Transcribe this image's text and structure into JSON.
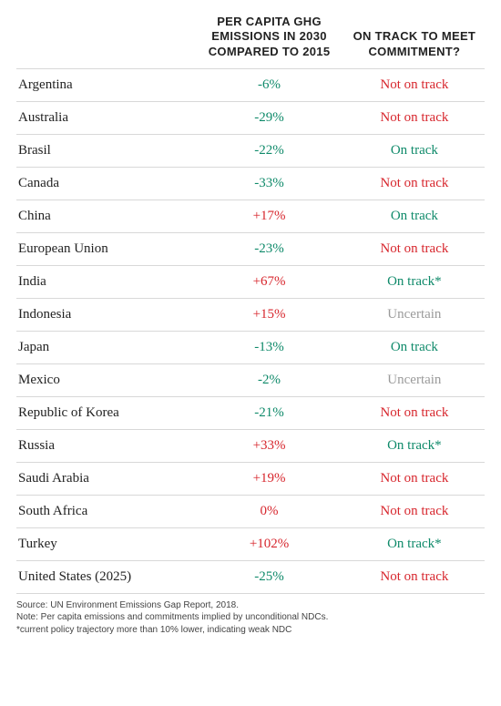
{
  "colors": {
    "negative_green": "#0f8a6a",
    "positive_red": "#d7262d",
    "uncertain_gray": "#9a9a9a",
    "text": "#222222",
    "border": "#d8d8d8"
  },
  "header": {
    "emissions": "PER CAPITA GHG EMISSIONS IN 2030 COMPARED TO 2015",
    "status": "ON TRACK TO MEET COMMITMENT?"
  },
  "rows": [
    {
      "country": "Argentina",
      "emissions": "-6%",
      "emissions_color": "#0f8a6a",
      "status": "Not on track",
      "status_color": "#d7262d"
    },
    {
      "country": "Australia",
      "emissions": "-29%",
      "emissions_color": "#0f8a6a",
      "status": "Not on track",
      "status_color": "#d7262d"
    },
    {
      "country": "Brasil",
      "emissions": "-22%",
      "emissions_color": "#0f8a6a",
      "status": "On track",
      "status_color": "#0f8a6a"
    },
    {
      "country": "Canada",
      "emissions": "-33%",
      "emissions_color": "#0f8a6a",
      "status": "Not on track",
      "status_color": "#d7262d"
    },
    {
      "country": "China",
      "emissions": "+17%",
      "emissions_color": "#d7262d",
      "status": "On track",
      "status_color": "#0f8a6a"
    },
    {
      "country": "European Union",
      "emissions": "-23%",
      "emissions_color": "#0f8a6a",
      "status": "Not on track",
      "status_color": "#d7262d"
    },
    {
      "country": "India",
      "emissions": "+67%",
      "emissions_color": "#d7262d",
      "status": "On track*",
      "status_color": "#0f8a6a"
    },
    {
      "country": "Indonesia",
      "emissions": "+15%",
      "emissions_color": "#d7262d",
      "status": "Uncertain",
      "status_color": "#9a9a9a"
    },
    {
      "country": "Japan",
      "emissions": "-13%",
      "emissions_color": "#0f8a6a",
      "status": "On track",
      "status_color": "#0f8a6a"
    },
    {
      "country": "Mexico",
      "emissions": "-2%",
      "emissions_color": "#0f8a6a",
      "status": "Uncertain",
      "status_color": "#9a9a9a"
    },
    {
      "country": "Republic of Korea",
      "emissions": "-21%",
      "emissions_color": "#0f8a6a",
      "status": "Not on track",
      "status_color": "#d7262d"
    },
    {
      "country": "Russia",
      "emissions": "+33%",
      "emissions_color": "#d7262d",
      "status": "On track*",
      "status_color": "#0f8a6a"
    },
    {
      "country": "Saudi Arabia",
      "emissions": "+19%",
      "emissions_color": "#d7262d",
      "status": "Not on track",
      "status_color": "#d7262d"
    },
    {
      "country": "South Africa",
      "emissions": "0%",
      "emissions_color": "#d7262d",
      "status": "Not on track",
      "status_color": "#d7262d"
    },
    {
      "country": "Turkey",
      "emissions": "+102%",
      "emissions_color": "#d7262d",
      "status": "On track*",
      "status_color": "#0f8a6a"
    },
    {
      "country": "United States (2025)",
      "emissions": "-25%",
      "emissions_color": "#0f8a6a",
      "status": "Not on track",
      "status_color": "#d7262d"
    }
  ],
  "footnotes": {
    "source": "Source: UN Environment Emissions Gap Report, 2018.",
    "note": "Note: Per capita emissions and commitments implied by unconditional NDCs.",
    "asterisk": "*current policy trajectory more than 10% lower, indicating weak NDC"
  }
}
